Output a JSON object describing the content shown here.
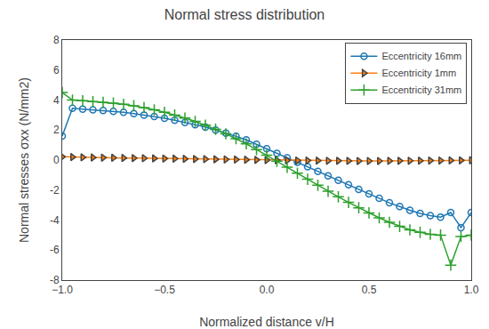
{
  "chart_data": {
    "type": "line",
    "title": "Normal stress distribution",
    "xlabel": "Normalized distance v/H",
    "ylabel": "Normal stresses σxx (N/mm2)",
    "x": [
      -1.0,
      -0.95,
      -0.9,
      -0.85,
      -0.8,
      -0.75,
      -0.7,
      -0.65,
      -0.6,
      -0.55,
      -0.5,
      -0.45,
      -0.4,
      -0.35,
      -0.3,
      -0.25,
      -0.2,
      -0.15,
      -0.1,
      -0.05,
      0.0,
      0.05,
      0.1,
      0.15,
      0.2,
      0.25,
      0.3,
      0.35,
      0.4,
      0.45,
      0.5,
      0.55,
      0.6,
      0.65,
      0.7,
      0.75,
      0.8,
      0.85,
      0.9,
      0.95,
      1.0
    ],
    "series": [
      {
        "name": "Eccentricity 16mm",
        "marker": "circle",
        "values": [
          1.6,
          3.45,
          3.4,
          3.35,
          3.3,
          3.25,
          3.18,
          3.1,
          3.0,
          2.9,
          2.78,
          2.65,
          2.5,
          2.35,
          2.2,
          2.0,
          1.8,
          1.58,
          1.35,
          1.05,
          0.75,
          0.45,
          0.15,
          -0.15,
          -0.45,
          -0.75,
          -1.05,
          -1.35,
          -1.65,
          -1.95,
          -2.25,
          -2.55,
          -2.85,
          -3.1,
          -3.35,
          -3.55,
          -3.7,
          -3.8,
          -3.5,
          -4.5,
          -3.5
        ]
      },
      {
        "name": "Eccentricity 1mm",
        "marker": "triangle-right",
        "values": [
          0.22,
          0.2,
          0.18,
          0.17,
          0.16,
          0.15,
          0.14,
          0.13,
          0.12,
          0.11,
          0.1,
          0.09,
          0.08,
          0.07,
          0.06,
          0.05,
          0.04,
          0.03,
          0.02,
          0.01,
          0.0,
          -0.01,
          -0.02,
          -0.03,
          -0.035,
          -0.04,
          -0.045,
          -0.05,
          -0.055,
          -0.06,
          -0.06,
          -0.06,
          -0.055,
          -0.05,
          -0.045,
          -0.04,
          -0.035,
          -0.03,
          -0.025,
          -0.02,
          -0.015
        ]
      },
      {
        "name": "Eccentricity 31mm",
        "marker": "plus",
        "values": [
          4.5,
          4.0,
          3.95,
          3.9,
          3.85,
          3.8,
          3.72,
          3.62,
          3.5,
          3.35,
          3.18,
          3.0,
          2.8,
          2.58,
          2.32,
          2.05,
          1.75,
          1.42,
          1.08,
          0.7,
          0.32,
          -0.08,
          -0.48,
          -0.88,
          -1.28,
          -1.68,
          -2.08,
          -2.45,
          -2.82,
          -3.18,
          -3.52,
          -3.85,
          -4.15,
          -4.42,
          -4.65,
          -4.82,
          -4.95,
          -5.0,
          -7.0,
          -5.1,
          -5.0
        ]
      }
    ],
    "xlim": [
      -1.0,
      1.0
    ],
    "ylim": [
      -8,
      8
    ],
    "xticks": [
      {
        "value": -1.0,
        "label": "−1.0"
      },
      {
        "value": -0.5,
        "label": "−0.5"
      },
      {
        "value": 0.0,
        "label": "0.0"
      },
      {
        "value": 0.5,
        "label": "0.5"
      },
      {
        "value": 1.0,
        "label": "1.0"
      }
    ],
    "yticks": [
      -8,
      -6,
      -4,
      -2,
      0,
      2,
      4,
      6,
      8
    ],
    "grid": false,
    "legend": "upper right"
  }
}
